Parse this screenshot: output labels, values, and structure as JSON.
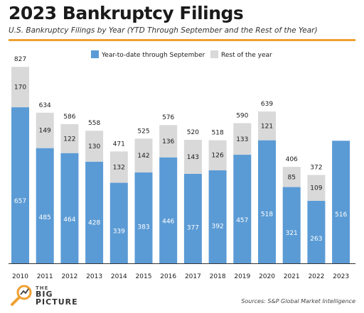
{
  "header": {
    "title": "2023 Bankruptcy Filings",
    "subtitle": "U.S. Bankruptcy Filings by Year (YTD Through September and the Rest of the Year)"
  },
  "footer": {
    "logo_small": "THE",
    "logo_big1": "BIG",
    "logo_big2": "PICTURE",
    "source": "Sources: S&P Global Market Intelligence"
  },
  "colors": {
    "ytd": "#5b9bd5",
    "rest": "#d9d9d9",
    "accent": "#f0a030"
  },
  "chart_data": {
    "type": "bar",
    "stacked": true,
    "categories": [
      "2010",
      "2011",
      "2012",
      "2013",
      "2014",
      "2015",
      "2016",
      "2017",
      "2018",
      "2019",
      "2020",
      "2021",
      "2022",
      "2023"
    ],
    "series": [
      {
        "name": "Year-to-date through September",
        "values": [
          657,
          485,
          464,
          428,
          339,
          383,
          446,
          377,
          392,
          457,
          518,
          321,
          263,
          516
        ]
      },
      {
        "name": "Rest of the year",
        "values": [
          170,
          149,
          122,
          130,
          132,
          142,
          136,
          143,
          126,
          133,
          121,
          85,
          109,
          null
        ]
      }
    ],
    "totals": [
      827,
      634,
      586,
      558,
      471,
      525,
      576,
      520,
      518,
      590,
      639,
      406,
      372,
      null
    ],
    "legend_position": "top-right",
    "ylim": [
      0,
      900
    ],
    "grid": false
  }
}
